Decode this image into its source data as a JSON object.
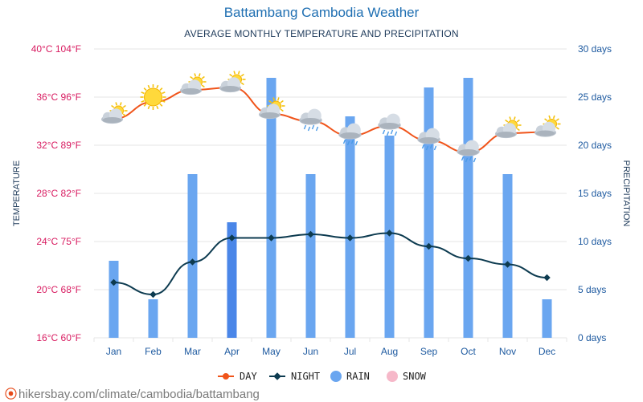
{
  "title": "Battambang Cambodia Weather",
  "subtitle": "AVERAGE MONTHLY TEMPERATURE AND PRECIPITATION",
  "watermark": "hikersbay.com/climate/cambodia/battambang",
  "legend": {
    "day": "DAY",
    "night": "NIGHT",
    "rain": "RAIN",
    "snow": "SNOW"
  },
  "colors": {
    "day": "#f0541a",
    "night": "#0d3b50",
    "rain": "#6aa6f0",
    "rain_highlight": "#4a86e8",
    "snow": "#f6b8c9",
    "left_axis": "#d81b60",
    "right_axis": "#1e5aa0",
    "title": "#1f6fb2",
    "grid": "#e6e6e6"
  },
  "chart_data": {
    "type": "line+bar",
    "categories": [
      "Jan",
      "Feb",
      "Mar",
      "Apr",
      "May",
      "Jun",
      "Jul",
      "Aug",
      "Sep",
      "Oct",
      "Nov",
      "Dec"
    ],
    "y_left": {
      "label": "TEMPERATURE",
      "range": [
        16,
        40
      ],
      "ticks": [
        "40°C 104°F",
        "36°C 96°F",
        "32°C 89°F",
        "28°C 82°F",
        "24°C 75°F",
        "20°C 68°F",
        "16°C 60°F"
      ]
    },
    "y_right": {
      "label": "PRECIPITATION",
      "range": [
        0,
        30
      ],
      "ticks": [
        "30 days",
        "25 days",
        "20 days",
        "15 days",
        "10 days",
        "5 days",
        "0 days"
      ]
    },
    "series": [
      {
        "name": "DAY",
        "type": "line",
        "axis": "left",
        "values": [
          34.2,
          35.6,
          36.6,
          36.8,
          34.6,
          34.0,
          32.8,
          33.6,
          32.4,
          31.4,
          33.0,
          33.1
        ]
      },
      {
        "name": "NIGHT",
        "type": "line",
        "axis": "left",
        "values": [
          20.6,
          19.6,
          22.3,
          24.3,
          24.3,
          24.6,
          24.3,
          24.7,
          23.6,
          22.6,
          22.1,
          21.0
        ]
      },
      {
        "name": "RAIN",
        "type": "bar",
        "axis": "right",
        "values": [
          8,
          4,
          17,
          12,
          27,
          17,
          23,
          21,
          26,
          27,
          17,
          4
        ]
      }
    ],
    "weather_icons": [
      "partly-cloudy-icon",
      "sun-icon",
      "partly-cloudy-icon",
      "partly-cloudy-icon",
      "partly-cloudy-icon",
      "cloud-icon",
      "rain-cloud-icon",
      "rain-cloud-icon",
      "rain-cloud-icon",
      "rain-cloud-icon",
      "partly-cloudy-icon",
      "partly-cloudy-icon"
    ],
    "highlighted_month": "Apr",
    "grid": true,
    "legend_position": "bottom-center"
  }
}
